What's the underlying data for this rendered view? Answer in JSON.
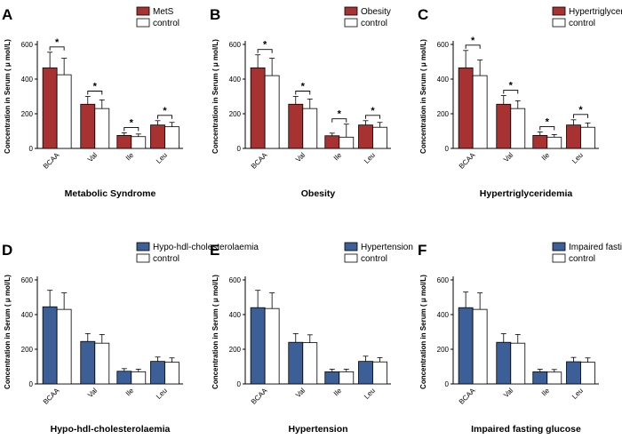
{
  "figure": {
    "ylabel": "Concentration in Serum ( μ mol/L)",
    "categories": [
      "BCAA",
      "Val",
      "Ile",
      "Leu"
    ],
    "ylim": [
      0,
      600
    ],
    "yticks": [
      0,
      200,
      400,
      600
    ],
    "colors": {
      "red": "#a83232",
      "blue": "#3c5f97",
      "control": "#ffffff"
    }
  },
  "chart_data": [
    {
      "panel": "A",
      "type": "bar",
      "title": "Metabolic Syndrome",
      "categories": [
        "BCAA",
        "Val",
        "Ile",
        "Leu"
      ],
      "series": [
        {
          "name": "MetS",
          "values": [
            465,
            255,
            75,
            135
          ],
          "errors": [
            90,
            45,
            15,
            25
          ]
        },
        {
          "name": "control",
          "values": [
            425,
            230,
            68,
            125
          ],
          "errors": [
            95,
            50,
            15,
            25
          ]
        }
      ],
      "significance": [
        "*",
        "*",
        "*",
        "*"
      ],
      "ylim": [
        0,
        600
      ],
      "ylabel": "Concentration in Serum ( μ mol/L)",
      "color": "red"
    },
    {
      "panel": "B",
      "type": "bar",
      "title": "Obesity",
      "categories": [
        "BCAA",
        "Val",
        "Ile",
        "Leu"
      ],
      "series": [
        {
          "name": "Obesity",
          "values": [
            465,
            255,
            73,
            135
          ],
          "errors": [
            75,
            45,
            15,
            25
          ]
        },
        {
          "name": "control",
          "values": [
            420,
            230,
            65,
            122
          ],
          "errors": [
            100,
            55,
            75,
            28
          ]
        }
      ],
      "significance": [
        "*",
        "*",
        "*",
        "*"
      ],
      "ylim": [
        0,
        600
      ],
      "ylabel": "Concentration in Serum ( μ mol/L)",
      "color": "red"
    },
    {
      "panel": "C",
      "type": "bar",
      "title": "Hypertriglyceridemia",
      "categories": [
        "BCAA",
        "Val",
        "Ile",
        "Leu"
      ],
      "series": [
        {
          "name": "Hypertriglyceridemia",
          "values": [
            465,
            255,
            75,
            135
          ],
          "errors": [
            100,
            50,
            20,
            30
          ]
        },
        {
          "name": "control",
          "values": [
            420,
            230,
            65,
            122
          ],
          "errors": [
            90,
            45,
            15,
            25
          ]
        }
      ],
      "significance": [
        "*",
        "*",
        "*",
        "*"
      ],
      "ylim": [
        0,
        600
      ],
      "ylabel": "Concentration in Serum ( μ mol/L)",
      "color": "red"
    },
    {
      "panel": "D",
      "type": "bar",
      "title": "Hypo-hdl-cholesterolaemia",
      "categories": [
        "BCAA",
        "Val",
        "Ile",
        "Leu"
      ],
      "series": [
        {
          "name": "Hypo-hdl-cholesterolaemia",
          "values": [
            445,
            245,
            73,
            130
          ],
          "errors": [
            95,
            45,
            15,
            25
          ]
        },
        {
          "name": "control",
          "values": [
            430,
            235,
            70,
            125
          ],
          "errors": [
            95,
            50,
            15,
            25
          ]
        }
      ],
      "significance": [],
      "ylim": [
        0,
        600
      ],
      "ylabel": "Concentration in Serum ( μ mol/L)",
      "color": "blue"
    },
    {
      "panel": "E",
      "type": "bar",
      "title": "Hypertension",
      "categories": [
        "BCAA",
        "Val",
        "Ile",
        "Leu"
      ],
      "series": [
        {
          "name": "Hypertension",
          "values": [
            440,
            240,
            70,
            130
          ],
          "errors": [
            100,
            50,
            15,
            30
          ]
        },
        {
          "name": "control",
          "values": [
            435,
            238,
            70,
            127
          ],
          "errors": [
            90,
            45,
            15,
            25
          ]
        }
      ],
      "significance": [],
      "ylim": [
        0,
        600
      ],
      "ylabel": "Concentration in Serum ( μ mol/L)",
      "color": "blue"
    },
    {
      "panel": "F",
      "type": "bar",
      "title": "Impaired fasting glucose",
      "categories": [
        "BCAA",
        "Val",
        "Ile",
        "Leu"
      ],
      "series": [
        {
          "name": "Impaired fasting glucose",
          "values": [
            440,
            240,
            70,
            128
          ],
          "errors": [
            90,
            50,
            15,
            25
          ]
        },
        {
          "name": "control",
          "values": [
            430,
            235,
            68,
            125
          ],
          "errors": [
            95,
            50,
            15,
            25
          ]
        }
      ],
      "significance": [],
      "ylim": [
        0,
        600
      ],
      "ylabel": "Concentration in Serum ( μ mol/L)",
      "color": "blue"
    }
  ]
}
